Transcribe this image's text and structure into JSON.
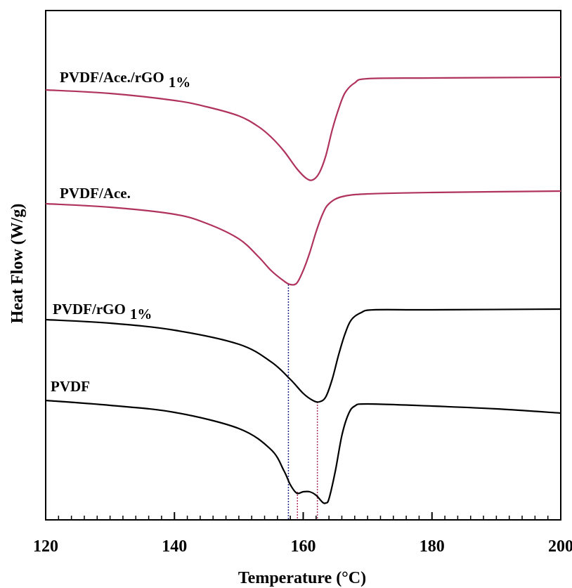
{
  "chart_data": {
    "type": "line",
    "xlabel": "Temperature (°C)",
    "ylabel": "Heat Flow (W/g)",
    "xlim": [
      120,
      200
    ],
    "xticks": [
      120,
      140,
      160,
      180,
      200
    ],
    "minor_tick_step": 2,
    "ylim": [
      0,
      725
    ],
    "series": [
      {
        "name": "PVDF/Ace./rGO",
        "name_sub": "1%",
        "color": "#b0325e",
        "x": [
          120,
          130,
          140,
          145,
          150,
          153,
          155,
          157,
          159,
          160.5,
          161.5,
          162.5,
          163.5,
          164.5,
          165.5,
          166.5,
          168,
          170,
          180,
          200
        ],
        "values": [
          612,
          607,
          597,
          588,
          575,
          560,
          545,
          525,
          500,
          486,
          484,
          494,
          518,
          555,
          585,
          608,
          622,
          628,
          629,
          630
        ]
      },
      {
        "name": "PVDF/Ace.",
        "color": "#b0325e",
        "x": [
          120,
          130,
          140,
          145,
          150,
          153,
          155,
          157,
          158,
          159,
          160,
          161,
          162,
          163,
          164,
          166,
          170,
          180,
          200
        ],
        "values": [
          450,
          445,
          435,
          422,
          400,
          375,
          355,
          340,
          335,
          337,
          355,
          380,
          410,
          435,
          450,
          460,
          464,
          466,
          468
        ]
      },
      {
        "name": "PVDF/rGO",
        "name_sub": "1%",
        "color": "#000000",
        "x": [
          120,
          130,
          140,
          150,
          155,
          158,
          160,
          161.5,
          162.5,
          163.5,
          164.5,
          165.5,
          166.5,
          167.5,
          169,
          171,
          180,
          200
        ],
        "values": [
          285,
          280,
          270,
          250,
          225,
          200,
          180,
          170,
          168,
          175,
          200,
          235,
          265,
          285,
          295,
          299,
          299,
          300
        ]
      },
      {
        "name": "PVDF",
        "color": "#000000",
        "x": [
          120,
          130,
          140,
          150,
          155,
          157,
          158,
          159,
          160,
          161,
          162,
          163,
          163.5,
          164,
          165,
          166,
          167,
          168,
          170,
          180,
          190,
          200
        ],
        "values": [
          170,
          163,
          153,
          130,
          100,
          70,
          50,
          38,
          40,
          40,
          35,
          25,
          24,
          30,
          70,
          120,
          150,
          162,
          165,
          162,
          158,
          152
        ]
      }
    ],
    "reference_lines": [
      {
        "x": 157.7,
        "color": "#1f2a8a"
      },
      {
        "x": 159.1,
        "color": "#b0325e"
      },
      {
        "x": 162.2,
        "color": "#b0325e"
      }
    ]
  }
}
